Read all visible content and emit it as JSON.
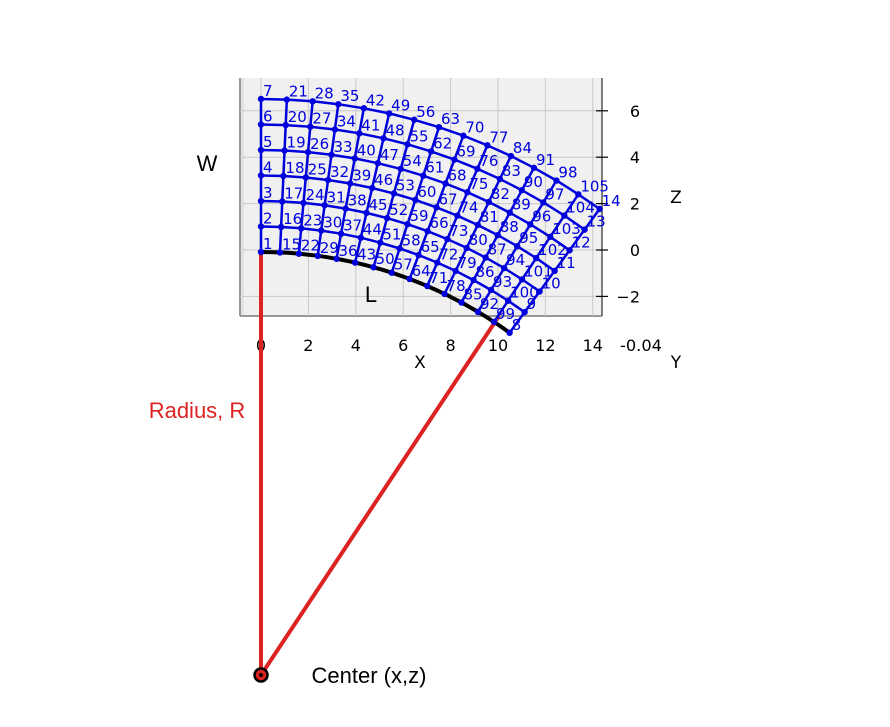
{
  "annotations": {
    "w_label": "W",
    "l_label": "L",
    "radius_label": "Radius, R",
    "center_label": "Center (x,z)"
  },
  "axes": {
    "x_label": "X",
    "y_label": "Y",
    "z_label": "Z",
    "x_ticks": [
      "0",
      "2",
      "4",
      "6",
      "8",
      "10",
      "12",
      "14"
    ],
    "z_ticks": [
      "6",
      "4",
      "2",
      "0",
      "−2"
    ],
    "y_ticks_overlap": "-0.04",
    "xlim": [
      -1,
      14.5
    ],
    "zlim": [
      -2.8,
      7.3
    ],
    "grid": true
  },
  "colors": {
    "mesh": "#0000dd",
    "node_labels": "#0000dd",
    "radius_lines": "#dd2222",
    "arc": "#000000",
    "pane": "#f0f0f0",
    "grid": "#c8c8c8"
  },
  "mesh": {
    "columns": 15,
    "rows": 7,
    "arc_angle_deg": 36,
    "node_numbers": [
      "1",
      "2",
      "3",
      "4",
      "5",
      "6",
      "7",
      "15",
      "16",
      "17",
      "18",
      "19",
      "20",
      "21",
      "22",
      "23",
      "24",
      "25",
      "26",
      "27",
      "28",
      "29",
      "30",
      "31",
      "32",
      "33",
      "34",
      "35",
      "36",
      "37",
      "38",
      "39",
      "40",
      "41",
      "42",
      "43",
      "44",
      "45",
      "46",
      "47",
      "48",
      "49",
      "50",
      "51",
      "52",
      "53",
      "54",
      "55",
      "56",
      "57",
      "58",
      "59",
      "60",
      "61",
      "62",
      "63",
      "64",
      "65",
      "66",
      "67",
      "68",
      "69",
      "70",
      "71",
      "72",
      "73",
      "74",
      "75",
      "76",
      "77",
      "78",
      "79",
      "80",
      "81",
      "82",
      "83",
      "84",
      "85",
      "86",
      "87",
      "88",
      "89",
      "90",
      "91",
      "92",
      "93",
      "94",
      "95",
      "96",
      "97",
      "98",
      "99",
      "100",
      "101",
      "102",
      "103",
      "104",
      "105",
      "8",
      "9",
      "10",
      "11",
      "12",
      "13",
      "14"
    ]
  }
}
